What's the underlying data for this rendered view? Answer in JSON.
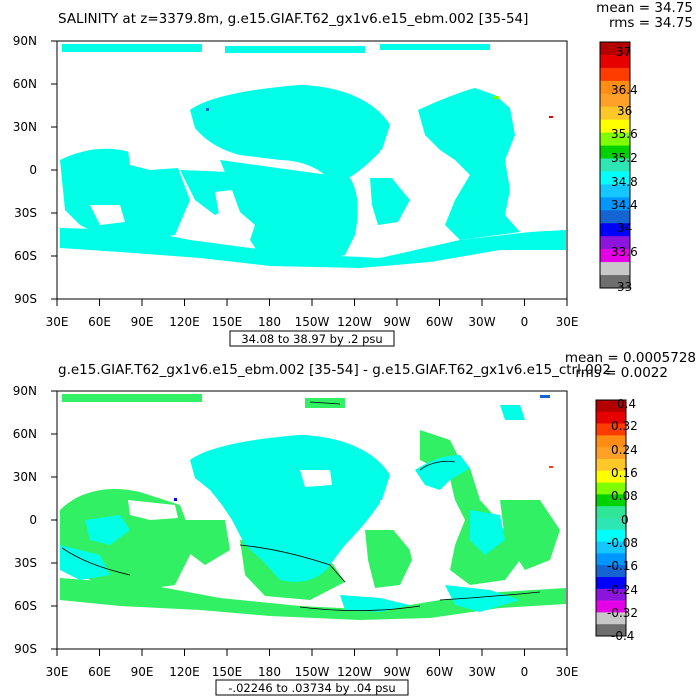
{
  "panels": [
    {
      "title": "SALINITY at z=3379.8m, g.e15.GIAF.T62_gx1v6.e15_ebm.002 [35-54]",
      "mean_label": "mean = 34.75",
      "rms_label": "rms = 34.75",
      "range_label": "34.08 to 38.97 by .2 psu",
      "colorbar_labels": [
        "37",
        "36.4",
        "36",
        "35.6",
        "35.2",
        "34.8",
        "34.4",
        "34",
        "33.6",
        "33"
      ],
      "colorbar_colors": [
        "#b40000",
        "#e60000",
        "#ff3c00",
        "#ff8c14",
        "#ffa028",
        "#ffc828",
        "#ffff00",
        "#80ff00",
        "#00d200",
        "#2ee6b4",
        "#00ffff",
        "#14c8ff",
        "#0096ff",
        "#1464d2",
        "#0000ff",
        "#8c14dc",
        "#e600e6",
        "#c8c8c8",
        "#6e6e6e"
      ],
      "ocean_color": "#00ffe6",
      "land_color": "#ffffff"
    },
    {
      "title": "g.e15.GIAF.T62_gx1v6.e15_ebm.002 [35-54] - g.e15.GIAF.T62_gx1v6.e15_ctrl.002",
      "mean_label": "mean = 0.0005728",
      "rms_label": "rms = 0.0022",
      "range_label": "-.02246 to .03734 by .04 psu",
      "colorbar_labels": [
        "0.4",
        "0.32",
        "0.24",
        "0.16",
        "0.08",
        "0",
        "-0.08",
        "-0.16",
        "-0.24",
        "-0.32",
        "-0.4"
      ],
      "colorbar_colors": [
        "#b40000",
        "#e60000",
        "#ff3c00",
        "#ff8c14",
        "#ffa028",
        "#ffc828",
        "#ffff00",
        "#80ff00",
        "#00d200",
        "#2ee696",
        "#2ee6b4",
        "#00ffff",
        "#14c8ff",
        "#0096ff",
        "#1464d2",
        "#0000ff",
        "#8c14dc",
        "#e600e6",
        "#c8c8c8",
        "#6e6e6e"
      ],
      "ocean_color": "#00ffe6",
      "positive_color": "#32f064",
      "land_color": "#ffffff"
    }
  ],
  "axes": {
    "lat_labels": [
      "90N",
      "60N",
      "30N",
      "0",
      "30S",
      "60S",
      "90S"
    ],
    "lon_labels": [
      "30E",
      "60E",
      "90E",
      "120E",
      "150E",
      "180",
      "150W",
      "120W",
      "90W",
      "60W",
      "30W",
      "0",
      "30E"
    ]
  }
}
